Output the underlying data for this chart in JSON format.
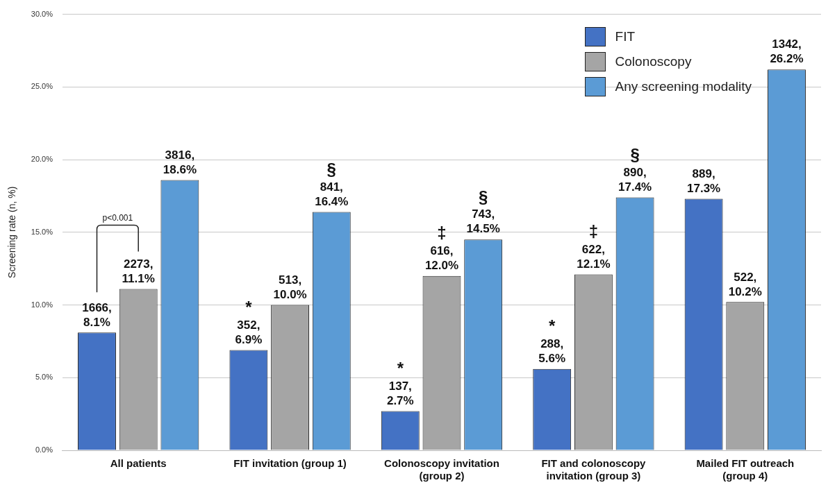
{
  "chart_data": {
    "type": "bar",
    "ylabel": "Screening rate (n, %)",
    "categories": [
      "All patients",
      "FIT invitation (group 1)",
      "Colonoscopy invitation\n(group 2)",
      "FIT and colonoscopy\ninvitation (group 3)",
      "Mailed FIT outreach\n(group 4)"
    ],
    "series": [
      {
        "name": "FIT",
        "color": "#4472c4",
        "values": [
          8.1,
          6.9,
          2.7,
          5.6,
          17.3
        ],
        "value_labels": [
          "1666,\n8.1%",
          "*\n352,\n6.9%",
          "*\n137,\n2.7%",
          "*\n288,\n5.6%",
          "889,\n17.3%"
        ]
      },
      {
        "name": "Colonoscopy",
        "color": "#a5a5a5",
        "values": [
          11.1,
          10.0,
          12.0,
          12.1,
          10.2
        ],
        "value_labels": [
          "2273,\n11.1%",
          "513,\n10.0%",
          "‡\n616,\n12.0%",
          "‡\n622,\n12.1%",
          "522,\n10.2%"
        ]
      },
      {
        "name": "Any screening modality",
        "color": "#5b9bd5",
        "values": [
          18.6,
          16.4,
          14.5,
          17.4,
          26.2
        ],
        "value_labels": [
          "3816,\n18.6%",
          "§\n841,\n16.4%",
          "§\n743,\n14.5%",
          "§\n890,\n17.4%",
          "1342,\n26.2%"
        ]
      }
    ],
    "ylim": [
      0,
      30
    ],
    "yticks": [
      {
        "value": 0,
        "label": "0.0%"
      },
      {
        "value": 5,
        "label": "5.0%"
      },
      {
        "value": 10,
        "label": "10.0%"
      },
      {
        "value": 15,
        "label": "15.0%"
      },
      {
        "value": 20,
        "label": "20.0%"
      },
      {
        "value": 25,
        "label": "25.0%"
      },
      {
        "value": 30,
        "label": "30.0%"
      }
    ],
    "grid": "y",
    "legend": "top right",
    "annotations": [
      "p<0.001"
    ]
  }
}
